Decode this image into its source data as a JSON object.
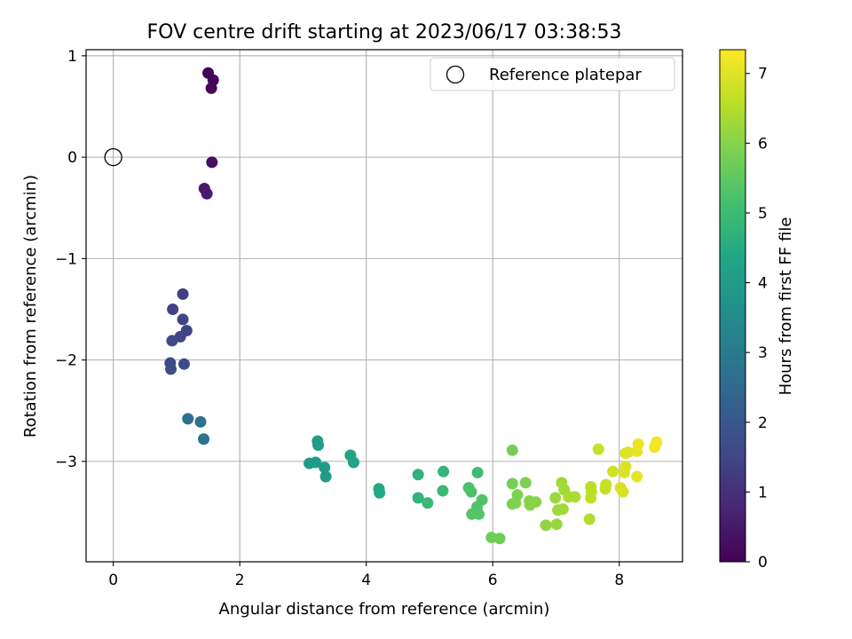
{
  "chart_data": {
    "type": "scatter",
    "title": "FOV centre drift starting at 2023/06/17 03:38:53",
    "xlabel": "Angular distance from reference (arcmin)",
    "ylabel": "Rotation from reference (arcmin)",
    "xlim": [
      -0.43,
      9.0
    ],
    "ylim": [
      -3.99,
      1.06
    ],
    "xticks": [
      0,
      2,
      4,
      6,
      8
    ],
    "yticks": [
      1,
      0,
      -1,
      -2,
      -3
    ],
    "grid": true,
    "legend": {
      "placement": "top-right",
      "entries": [
        "Reference platepar"
      ]
    },
    "colorbar": {
      "label": "Hours from first FF file",
      "min": 0,
      "max": 7.34,
      "ticks": [
        0,
        1,
        2,
        3,
        4,
        5,
        6,
        7
      ],
      "colormap": "viridis"
    },
    "reference": {
      "x": 0,
      "y": 0,
      "label": "Reference platepar"
    },
    "points": [
      {
        "x": 1.5,
        "y": 0.83,
        "c": 0.05
      },
      {
        "x": 1.58,
        "y": 0.76,
        "c": 0.1
      },
      {
        "x": 1.55,
        "y": 0.68,
        "c": 0.15
      },
      {
        "x": 1.56,
        "y": -0.05,
        "c": 0.3
      },
      {
        "x": 1.44,
        "y": -0.31,
        "c": 0.5
      },
      {
        "x": 1.48,
        "y": -0.36,
        "c": 0.55
      },
      {
        "x": 1.1,
        "y": -1.35,
        "c": 1.35
      },
      {
        "x": 0.94,
        "y": -1.5,
        "c": 1.4
      },
      {
        "x": 1.1,
        "y": -1.6,
        "c": 1.45
      },
      {
        "x": 1.16,
        "y": -1.71,
        "c": 1.5
      },
      {
        "x": 1.06,
        "y": -1.77,
        "c": 1.55
      },
      {
        "x": 0.93,
        "y": -1.81,
        "c": 1.6
      },
      {
        "x": 0.9,
        "y": -2.03,
        "c": 1.65
      },
      {
        "x": 1.12,
        "y": -2.04,
        "c": 1.7
      },
      {
        "x": 0.91,
        "y": -2.09,
        "c": 1.75
      },
      {
        "x": 1.18,
        "y": -2.58,
        "c": 2.7
      },
      {
        "x": 1.38,
        "y": -2.61,
        "c": 2.75
      },
      {
        "x": 1.43,
        "y": -2.78,
        "c": 2.8
      },
      {
        "x": 3.23,
        "y": -2.8,
        "c": 4.1
      },
      {
        "x": 3.24,
        "y": -2.84,
        "c": 4.1
      },
      {
        "x": 3.75,
        "y": -2.94,
        "c": 4.2
      },
      {
        "x": 3.8,
        "y": -3.01,
        "c": 4.2
      },
      {
        "x": 3.1,
        "y": -3.02,
        "c": 4.0
      },
      {
        "x": 3.2,
        "y": -3.01,
        "c": 4.0
      },
      {
        "x": 3.34,
        "y": -3.06,
        "c": 4.0
      },
      {
        "x": 3.36,
        "y": -3.15,
        "c": 4.0
      },
      {
        "x": 4.2,
        "y": -3.27,
        "c": 4.4
      },
      {
        "x": 4.21,
        "y": -3.31,
        "c": 4.4
      },
      {
        "x": 4.82,
        "y": -3.13,
        "c": 4.7
      },
      {
        "x": 5.22,
        "y": -3.1,
        "c": 4.8
      },
      {
        "x": 5.76,
        "y": -3.11,
        "c": 5.0
      },
      {
        "x": 5.21,
        "y": -3.29,
        "c": 4.9
      },
      {
        "x": 5.62,
        "y": -3.26,
        "c": 5.2
      },
      {
        "x": 5.66,
        "y": -3.3,
        "c": 5.2
      },
      {
        "x": 4.82,
        "y": -3.36,
        "c": 4.8
      },
      {
        "x": 4.97,
        "y": -3.41,
        "c": 4.9
      },
      {
        "x": 5.83,
        "y": -3.38,
        "c": 5.3
      },
      {
        "x": 5.75,
        "y": -3.45,
        "c": 5.3
      },
      {
        "x": 5.67,
        "y": -3.52,
        "c": 5.4
      },
      {
        "x": 5.78,
        "y": -3.52,
        "c": 5.4
      },
      {
        "x": 5.98,
        "y": -3.75,
        "c": 5.7
      },
      {
        "x": 6.11,
        "y": -3.76,
        "c": 5.7
      },
      {
        "x": 6.31,
        "y": -2.89,
        "c": 5.8
      },
      {
        "x": 6.31,
        "y": -3.22,
        "c": 5.8
      },
      {
        "x": 6.52,
        "y": -3.21,
        "c": 5.9
      },
      {
        "x": 6.39,
        "y": -3.33,
        "c": 5.9
      },
      {
        "x": 6.31,
        "y": -3.42,
        "c": 5.9
      },
      {
        "x": 6.36,
        "y": -3.41,
        "c": 5.9
      },
      {
        "x": 6.58,
        "y": -3.39,
        "c": 6.0
      },
      {
        "x": 6.68,
        "y": -3.4,
        "c": 6.0
      },
      {
        "x": 6.59,
        "y": -3.43,
        "c": 6.0
      },
      {
        "x": 6.84,
        "y": -3.63,
        "c": 6.1
      },
      {
        "x": 7.01,
        "y": -3.62,
        "c": 6.2
      },
      {
        "x": 6.99,
        "y": -3.36,
        "c": 6.2
      },
      {
        "x": 7.09,
        "y": -3.21,
        "c": 6.3
      },
      {
        "x": 7.13,
        "y": -3.28,
        "c": 6.3
      },
      {
        "x": 7.03,
        "y": -3.48,
        "c": 6.3
      },
      {
        "x": 7.11,
        "y": -3.47,
        "c": 6.3
      },
      {
        "x": 7.2,
        "y": -3.35,
        "c": 6.4
      },
      {
        "x": 7.3,
        "y": -3.35,
        "c": 6.4
      },
      {
        "x": 7.53,
        "y": -3.57,
        "c": 6.5
      },
      {
        "x": 7.55,
        "y": -3.25,
        "c": 6.6
      },
      {
        "x": 7.56,
        "y": -3.3,
        "c": 6.6
      },
      {
        "x": 7.55,
        "y": -3.36,
        "c": 6.6
      },
      {
        "x": 7.67,
        "y": -2.88,
        "c": 6.7
      },
      {
        "x": 7.79,
        "y": -3.23,
        "c": 6.7
      },
      {
        "x": 7.78,
        "y": -3.27,
        "c": 6.7
      },
      {
        "x": 7.9,
        "y": -3.1,
        "c": 6.8
      },
      {
        "x": 8.02,
        "y": -3.26,
        "c": 6.9
      },
      {
        "x": 8.06,
        "y": -3.3,
        "c": 6.9
      },
      {
        "x": 8.08,
        "y": -3.11,
        "c": 6.9
      },
      {
        "x": 8.1,
        "y": -3.05,
        "c": 6.95
      },
      {
        "x": 8.1,
        "y": -2.92,
        "c": 7.0
      },
      {
        "x": 8.14,
        "y": -2.91,
        "c": 7.0
      },
      {
        "x": 8.28,
        "y": -2.9,
        "c": 7.1
      },
      {
        "x": 8.28,
        "y": -3.15,
        "c": 7.1
      },
      {
        "x": 8.3,
        "y": -2.83,
        "c": 7.15
      },
      {
        "x": 8.56,
        "y": -2.86,
        "c": 7.2
      },
      {
        "x": 8.59,
        "y": -2.81,
        "c": 7.25
      }
    ]
  }
}
